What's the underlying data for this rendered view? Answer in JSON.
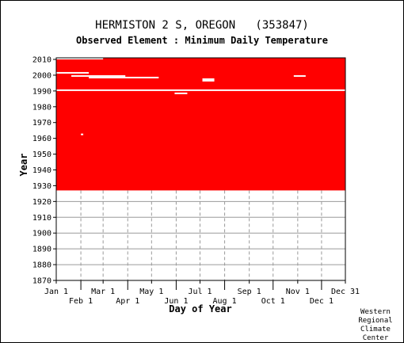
{
  "chart_data": {
    "type": "heatmap",
    "title": "HERMISTON 2 S, OREGON   (353847)",
    "subtitle": "Observed Element : Minimum Daily Temperature",
    "xlabel": "Day of Year",
    "ylabel": "Year",
    "xlim": [
      1,
      365
    ],
    "ylim": [
      1870,
      2011
    ],
    "grid": true,
    "data_color": "#ff0000",
    "grid_color": "#9a9a9a",
    "missing_color": "#ffffff",
    "x_ticks_upper": [
      {
        "label": "Jan 1",
        "day": 1
      },
      {
        "label": "Mar 1",
        "day": 60
      },
      {
        "label": "May 1",
        "day": 121
      },
      {
        "label": "Jul 1",
        "day": 182
      },
      {
        "label": "Sep 1",
        "day": 244
      },
      {
        "label": "Nov 1",
        "day": 305
      },
      {
        "label": "Dec 31",
        "day": 365
      }
    ],
    "x_ticks_lower": [
      {
        "label": "Feb 1",
        "day": 32
      },
      {
        "label": "Apr 1",
        "day": 91
      },
      {
        "label": "Jun 1",
        "day": 152
      },
      {
        "label": "Aug 1",
        "day": 213
      },
      {
        "label": "Oct 1",
        "day": 274
      },
      {
        "label": "Dec 1",
        "day": 335
      }
    ],
    "y_ticks": [
      1870,
      1880,
      1890,
      1900,
      1910,
      1920,
      1930,
      1940,
      1950,
      1960,
      1970,
      1980,
      1990,
      2000,
      2010
    ],
    "coverage": {
      "start_year": 1927,
      "end_year": 2010
    },
    "missing_bands": [
      {
        "year": 2010,
        "day_start": 1,
        "day_end": 60
      },
      {
        "year": 2001,
        "day_start": 1,
        "day_end": 42
      },
      {
        "year": 1999,
        "day_start": 20,
        "day_end": 88
      },
      {
        "year": 1998,
        "day_start": 42,
        "day_end": 130
      },
      {
        "year": 1997,
        "day_start": 185,
        "day_end": 200
      },
      {
        "year": 1996,
        "day_start": 185,
        "day_end": 200
      },
      {
        "year": 1999,
        "day_start": 300,
        "day_end": 315
      },
      {
        "year": 1990,
        "day_start": 1,
        "day_end": 365
      },
      {
        "year": 1988,
        "day_start": 150,
        "day_end": 166
      },
      {
        "year": 1962,
        "day_start": 32,
        "day_end": 35
      }
    ]
  },
  "credit": {
    "line1": "Western",
    "line2": "Regional",
    "line3": "Climate",
    "line4": "Center"
  }
}
